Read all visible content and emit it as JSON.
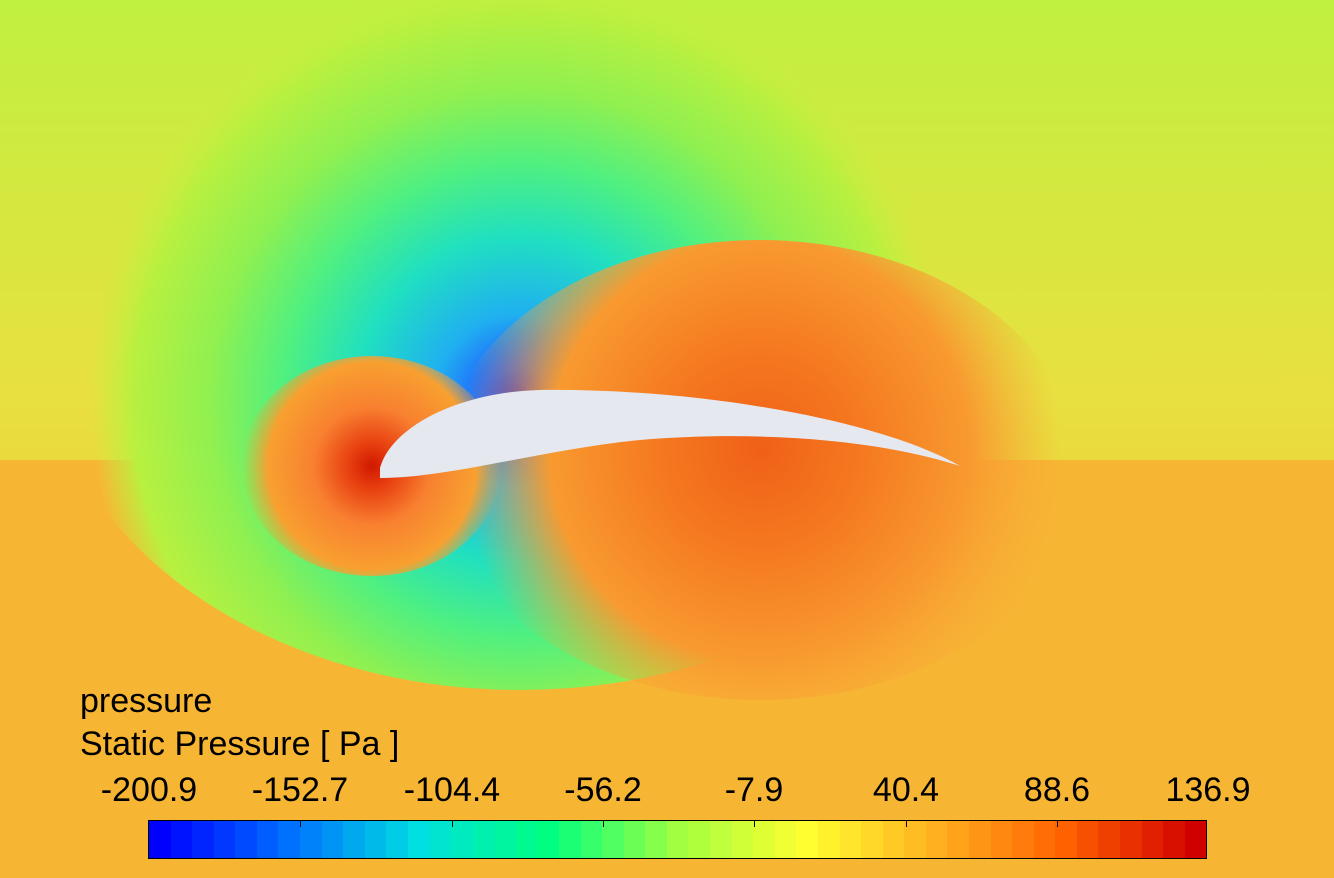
{
  "legend": {
    "variable": "pressure",
    "title": "Static Pressure [ Pa ]",
    "tick_labels": [
      "-200.9",
      "-152.7",
      "-104.4",
      "-56.2",
      "-7.9",
      "40.4",
      "88.6",
      "136.9"
    ],
    "min": -200.9,
    "max": 136.9
  },
  "colormap": [
    "#0000ff",
    "#0070ff",
    "#00e0e0",
    "#00ff80",
    "#a0ff40",
    "#ffff30",
    "#ffb020",
    "#ff6000",
    "#d00000"
  ],
  "airfoil_color": "#e6e8f0"
}
